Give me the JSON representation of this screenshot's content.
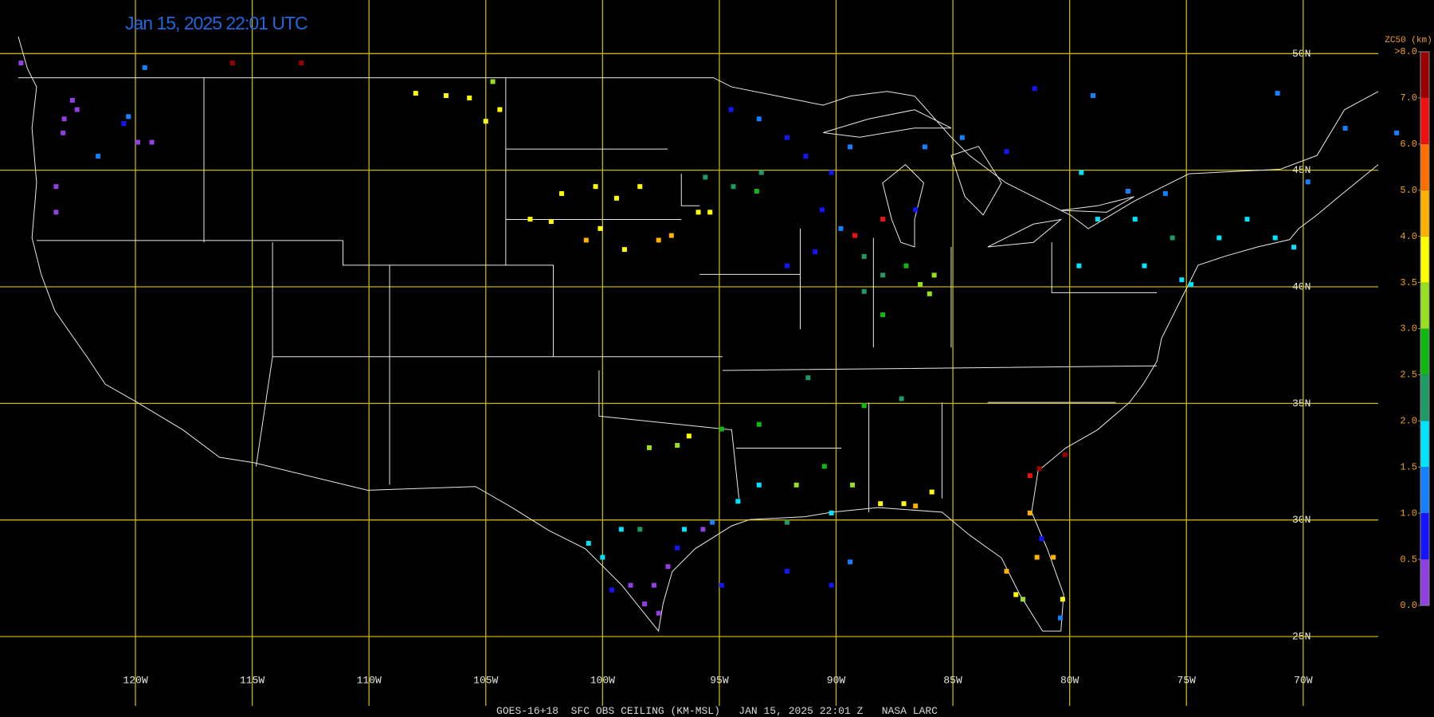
{
  "title": "Jan 15, 2025 22:01 UTC",
  "footer": "GOES-16+18  SFC OBS CEILING (KM-MSL)   JAN 15, 2025 22:01 Z   NASA LARC",
  "map": {
    "lon_range": [
      -125.8,
      -64.4
    ],
    "lat_range": [
      52.3,
      21.55
    ],
    "grid": true,
    "grid_color": "#c8b400",
    "lat_lines": [
      {
        "value": 50,
        "label": "50N"
      },
      {
        "value": 45,
        "label": "45N"
      },
      {
        "value": 40,
        "label": "40N"
      },
      {
        "value": 35,
        "label": "35N"
      },
      {
        "value": 30,
        "label": "30N"
      },
      {
        "value": 25,
        "label": "25N"
      }
    ],
    "lon_lines": [
      {
        "value": -120,
        "label": "120W"
      },
      {
        "value": -115,
        "label": "115W"
      },
      {
        "value": -110,
        "label": "110W"
      },
      {
        "value": -105,
        "label": "105W"
      },
      {
        "value": -100,
        "label": "100W"
      },
      {
        "value": -95,
        "label": "95W"
      },
      {
        "value": -90,
        "label": "90W"
      },
      {
        "value": -85,
        "label": "85W"
      },
      {
        "value": -80,
        "label": "80W"
      },
      {
        "value": -75,
        "label": "75W"
      },
      {
        "value": -70,
        "label": "70W"
      }
    ],
    "observations": [
      {
        "lon": -123.05,
        "lat": 47.2,
        "ceiling": 0.3
      },
      {
        "lon": -122.7,
        "lat": 48.0,
        "ceiling": 0.3
      },
      {
        "lon": -122.5,
        "lat": 47.6,
        "ceiling": 0.4
      },
      {
        "lon": -123.1,
        "lat": 46.6,
        "ceiling": 0.4
      },
      {
        "lon": -123.4,
        "lat": 44.3,
        "ceiling": 0.4
      },
      {
        "lon": -123.4,
        "lat": 43.2,
        "ceiling": 0.4
      },
      {
        "lon": -124.9,
        "lat": 49.6,
        "ceiling": 0.4
      },
      {
        "lon": -119.6,
        "lat": 49.4,
        "ceiling": 1.2
      },
      {
        "lon": -120.5,
        "lat": 47.0,
        "ceiling": 0.8
      },
      {
        "lon": -120.3,
        "lat": 47.3,
        "ceiling": 1.0
      },
      {
        "lon": -119.9,
        "lat": 46.2,
        "ceiling": 0.4
      },
      {
        "lon": -119.3,
        "lat": 46.2,
        "ceiling": 0.4
      },
      {
        "lon": -121.6,
        "lat": 45.6,
        "ceiling": 1.0
      },
      {
        "lon": -115.85,
        "lat": 49.6,
        "ceiling": 7.5
      },
      {
        "lon": -112.9,
        "lat": 49.6,
        "ceiling": 7.5
      },
      {
        "lon": -108.0,
        "lat": 48.3,
        "ceiling": 3.8
      },
      {
        "lon": -106.7,
        "lat": 48.2,
        "ceiling": 3.8
      },
      {
        "lon": -105.7,
        "lat": 48.1,
        "ceiling": 3.7
      },
      {
        "lon": -104.7,
        "lat": 48.8,
        "ceiling": 3.2
      },
      {
        "lon": -104.4,
        "lat": 47.6,
        "ceiling": 3.5
      },
      {
        "lon": -105.0,
        "lat": 47.1,
        "ceiling": 3.5
      },
      {
        "lon": -101.75,
        "lat": 44.0,
        "ceiling": 3.8
      },
      {
        "lon": -100.3,
        "lat": 44.3,
        "ceiling": 3.5
      },
      {
        "lon": -98.4,
        "lat": 44.3,
        "ceiling": 3.7
      },
      {
        "lon": -99.4,
        "lat": 43.8,
        "ceiling": 3.8
      },
      {
        "lon": -103.1,
        "lat": 42.9,
        "ceiling": 3.8
      },
      {
        "lon": -102.2,
        "lat": 42.8,
        "ceiling": 3.8
      },
      {
        "lon": -100.7,
        "lat": 42.0,
        "ceiling": 4.3
      },
      {
        "lon": -100.1,
        "lat": 42.5,
        "ceiling": 3.8
      },
      {
        "lon": -99.06,
        "lat": 41.6,
        "ceiling": 3.7
      },
      {
        "lon": -97.6,
        "lat": 42.0,
        "ceiling": 4.0
      },
      {
        "lon": -97.05,
        "lat": 42.2,
        "ceiling": 4.3
      },
      {
        "lon": -95.6,
        "lat": 44.7,
        "ceiling": 2.3
      },
      {
        "lon": -94.4,
        "lat": 44.3,
        "ceiling": 2.2
      },
      {
        "lon": -93.4,
        "lat": 44.1,
        "ceiling": 2.5
      },
      {
        "lon": -93.2,
        "lat": 44.9,
        "ceiling": 2.0
      },
      {
        "lon": -95.9,
        "lat": 43.2,
        "ceiling": 3.7
      },
      {
        "lon": -95.4,
        "lat": 43.2,
        "ceiling": 3.6
      },
      {
        "lon": -94.5,
        "lat": 47.6,
        "ceiling": 0.9
      },
      {
        "lon": -93.3,
        "lat": 47.2,
        "ceiling": 1.2
      },
      {
        "lon": -92.1,
        "lat": 46.4,
        "ceiling": 0.8
      },
      {
        "lon": -91.3,
        "lat": 45.6,
        "ceiling": 0.9
      },
      {
        "lon": -90.2,
        "lat": 44.9,
        "ceiling": 0.8
      },
      {
        "lon": -90.6,
        "lat": 43.3,
        "ceiling": 0.8
      },
      {
        "lon": -89.4,
        "lat": 46.0,
        "ceiling": 1.0
      },
      {
        "lon": -89.8,
        "lat": 42.5,
        "ceiling": 1.3
      },
      {
        "lon": -92.1,
        "lat": 40.9,
        "ceiling": 0.9
      },
      {
        "lon": -90.9,
        "lat": 41.5,
        "ceiling": 0.9
      },
      {
        "lon": -86.6,
        "lat": 43.3,
        "ceiling": 0.9
      },
      {
        "lon": -86.2,
        "lat": 46.0,
        "ceiling": 1.2
      },
      {
        "lon": -84.6,
        "lat": 46.4,
        "ceiling": 1.1
      },
      {
        "lon": -82.7,
        "lat": 45.8,
        "ceiling": 0.8
      },
      {
        "lon": -81.5,
        "lat": 48.5,
        "ceiling": 0.9
      },
      {
        "lon": -79.0,
        "lat": 48.2,
        "ceiling": 1.1
      },
      {
        "lon": -71.1,
        "lat": 48.3,
        "ceiling": 1.1
      },
      {
        "lon": -88.0,
        "lat": 42.9,
        "ceiling": 6.3
      },
      {
        "lon": -89.2,
        "lat": 42.2,
        "ceiling": 6.5
      },
      {
        "lon": -88.8,
        "lat": 41.3,
        "ceiling": 2.3
      },
      {
        "lon": -88.0,
        "lat": 40.5,
        "ceiling": 2.3
      },
      {
        "lon": -87.0,
        "lat": 40.9,
        "ceiling": 2.8
      },
      {
        "lon": -86.4,
        "lat": 40.1,
        "ceiling": 3.0
      },
      {
        "lon": -86.0,
        "lat": 39.7,
        "ceiling": 3.2
      },
      {
        "lon": -85.8,
        "lat": 40.5,
        "ceiling": 3.0
      },
      {
        "lon": -88.8,
        "lat": 39.8,
        "ceiling": 2.3
      },
      {
        "lon": -88.0,
        "lat": 38.8,
        "ceiling": 2.5
      },
      {
        "lon": -78.8,
        "lat": 42.9,
        "ceiling": 1.8
      },
      {
        "lon": -77.2,
        "lat": 42.9,
        "ceiling": 1.8
      },
      {
        "lon": -76.8,
        "lat": 40.9,
        "ceiling": 1.8
      },
      {
        "lon": -75.2,
        "lat": 40.3,
        "ceiling": 1.6
      },
      {
        "lon": -73.6,
        "lat": 42.1,
        "ceiling": 1.8
      },
      {
        "lon": -75.6,
        "lat": 42.1,
        "ceiling": 2.3
      },
      {
        "lon": -79.6,
        "lat": 40.9,
        "ceiling": 1.8
      },
      {
        "lon": -74.8,
        "lat": 40.1,
        "ceiling": 1.6
      },
      {
        "lon": -72.4,
        "lat": 42.9,
        "ceiling": 1.8
      },
      {
        "lon": -71.2,
        "lat": 42.1,
        "ceiling": 1.8
      },
      {
        "lon": -70.4,
        "lat": 41.7,
        "ceiling": 1.8
      },
      {
        "lon": -79.5,
        "lat": 44.9,
        "ceiling": 1.6
      },
      {
        "lon": -77.5,
        "lat": 44.1,
        "ceiling": 1.3
      },
      {
        "lon": -75.9,
        "lat": 44.0,
        "ceiling": 1.3
      },
      {
        "lon": -68.2,
        "lat": 46.8,
        "ceiling": 1.2
      },
      {
        "lon": -69.8,
        "lat": 44.5,
        "ceiling": 1.2
      },
      {
        "lon": -66.0,
        "lat": 46.6,
        "ceiling": 1.2
      },
      {
        "lon": -94.9,
        "lat": 33.9,
        "ceiling": 2.8
      },
      {
        "lon": -93.3,
        "lat": 34.1,
        "ceiling": 2.5
      },
      {
        "lon": -91.2,
        "lat": 36.1,
        "ceiling": 2.3
      },
      {
        "lon": -88.8,
        "lat": 34.9,
        "ceiling": 2.7
      },
      {
        "lon": -87.2,
        "lat": 35.2,
        "ceiling": 2.3
      },
      {
        "lon": -98.0,
        "lat": 33.1,
        "ceiling": 3.0
      },
      {
        "lon": -96.8,
        "lat": 33.2,
        "ceiling": 3.2
      },
      {
        "lon": -96.3,
        "lat": 33.6,
        "ceiling": 3.8
      },
      {
        "lon": -93.3,
        "lat": 31.5,
        "ceiling": 1.8
      },
      {
        "lon": -91.7,
        "lat": 31.5,
        "ceiling": 3.3
      },
      {
        "lon": -90.5,
        "lat": 32.3,
        "ceiling": 2.8
      },
      {
        "lon": -89.3,
        "lat": 31.5,
        "ceiling": 3.2
      },
      {
        "lon": -88.1,
        "lat": 30.7,
        "ceiling": 3.5
      },
      {
        "lon": -87.1,
        "lat": 30.7,
        "ceiling": 3.6
      },
      {
        "lon": -86.6,
        "lat": 30.6,
        "ceiling": 4.3
      },
      {
        "lon": -85.9,
        "lat": 31.2,
        "ceiling": 3.8
      },
      {
        "lon": -94.2,
        "lat": 30.8,
        "ceiling": 1.8
      },
      {
        "lon": -92.1,
        "lat": 29.9,
        "ceiling": 2.2
      },
      {
        "lon": -90.2,
        "lat": 30.3,
        "ceiling": 1.8
      },
      {
        "lon": -95.3,
        "lat": 29.9,
        "ceiling": 1.3
      },
      {
        "lon": -95.7,
        "lat": 29.6,
        "ceiling": 0.3
      },
      {
        "lon": -96.5,
        "lat": 29.6,
        "ceiling": 1.7
      },
      {
        "lon": -98.4,
        "lat": 29.6,
        "ceiling": 2.2
      },
      {
        "lon": -99.2,
        "lat": 29.6,
        "ceiling": 1.7
      },
      {
        "lon": -100.0,
        "lat": 28.4,
        "ceiling": 1.7
      },
      {
        "lon": -100.6,
        "lat": 29.0,
        "ceiling": 1.8
      },
      {
        "lon": -96.8,
        "lat": 28.8,
        "ceiling": 0.8
      },
      {
        "lon": -97.2,
        "lat": 28.0,
        "ceiling": 0.4
      },
      {
        "lon": -97.8,
        "lat": 27.2,
        "ceiling": 0.3
      },
      {
        "lon": -98.2,
        "lat": 26.4,
        "ceiling": 0.3
      },
      {
        "lon": -97.6,
        "lat": 26.0,
        "ceiling": 0.3
      },
      {
        "lon": -98.8,
        "lat": 27.2,
        "ceiling": 0.4
      },
      {
        "lon": -99.6,
        "lat": 27.0,
        "ceiling": 0.9
      },
      {
        "lon": -94.9,
        "lat": 27.2,
        "ceiling": 0.8
      },
      {
        "lon": -92.1,
        "lat": 27.8,
        "ceiling": 0.8
      },
      {
        "lon": -89.4,
        "lat": 28.2,
        "ceiling": 1.0
      },
      {
        "lon": -90.2,
        "lat": 27.2,
        "ceiling": 0.9
      },
      {
        "lon": -81.7,
        "lat": 31.9,
        "ceiling": 6.8
      },
      {
        "lon": -81.3,
        "lat": 32.2,
        "ceiling": 7.2
      },
      {
        "lon": -80.2,
        "lat": 32.8,
        "ceiling": 7.0
      },
      {
        "lon": -81.7,
        "lat": 30.3,
        "ceiling": 4.2
      },
      {
        "lon": -81.2,
        "lat": 29.2,
        "ceiling": 0.8
      },
      {
        "lon": -80.7,
        "lat": 28.4,
        "ceiling": 4.6
      },
      {
        "lon": -81.4,
        "lat": 28.4,
        "ceiling": 4.5
      },
      {
        "lon": -82.7,
        "lat": 27.8,
        "ceiling": 4.3
      },
      {
        "lon": -82.3,
        "lat": 26.8,
        "ceiling": 3.8
      },
      {
        "lon": -82.0,
        "lat": 26.6,
        "ceiling": 3.2
      },
      {
        "lon": -80.3,
        "lat": 26.6,
        "ceiling": 3.8
      },
      {
        "lon": -80.4,
        "lat": 25.8,
        "ceiling": 1.3
      }
    ]
  },
  "colorbar": {
    "title": "ZC50 (km)",
    "bins": [
      0,
      0.5,
      1,
      1.5,
      2,
      2.5,
      3,
      3.5,
      4,
      5,
      6,
      7,
      8
    ],
    "colors": [
      "#9040e0",
      "#1414ff",
      "#1480ff",
      "#00e4ff",
      "#1e9a64",
      "#12b812",
      "#96e020",
      "#ffff00",
      "#ffb000",
      "#ff7000",
      "#f01010",
      "#9a0000"
    ],
    "ticks": [
      {
        "value": 0,
        "label": "0.0"
      },
      0.5,
      {
        "value": 1,
        "label": "1.0"
      },
      1.5,
      {
        "value": 2,
        "label": "2.0"
      },
      2.5,
      {
        "value": 3,
        "label": "3.0"
      },
      3.5,
      {
        "value": 4,
        "label": "4.0"
      },
      {
        "value": 5,
        "label": "5.0"
      },
      {
        "value": 6,
        "label": "6.0"
      },
      {
        "value": 7,
        "label": "7.0"
      },
      {
        "value": 8,
        "label": ">8.0"
      }
    ]
  }
}
